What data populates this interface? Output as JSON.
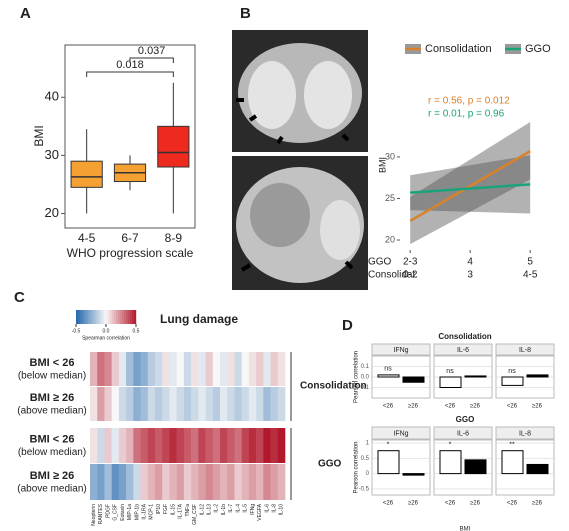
{
  "chart_data": [
    {
      "type": "box",
      "panel_label": "A",
      "ylabel": "BMI",
      "xlabel": "WHO progression scale",
      "categories": [
        "4-5",
        "6-7",
        "8-9"
      ],
      "boxes": [
        {
          "low": 20,
          "q1": 24.5,
          "median": 26.3,
          "q3": 29,
          "high": 34.5
        },
        {
          "low": 24,
          "q1": 25.5,
          "median": 27,
          "q3": 28.5,
          "high": 30
        },
        {
          "low": 20,
          "q1": 28,
          "median": 30.5,
          "q3": 35,
          "high": 42.5
        }
      ],
      "colors": [
        "#f5a033",
        "#f5a033",
        "#ee2a1e"
      ],
      "ylim": [
        17.5,
        49
      ],
      "yticks": [
        20,
        30,
        40
      ],
      "annotations": [
        "0.018",
        "0.037"
      ]
    },
    {
      "type": "line",
      "panel_label": "B",
      "ylabel": "BMI",
      "x": [
        3,
        5
      ],
      "series": [
        {
          "name": "Consolidation",
          "color": "#d9822b",
          "values": [
            22.3,
            30.7
          ],
          "lower": [
            19.5,
            27.3
          ],
          "upper": [
            25.2,
            34.2
          ]
        },
        {
          "name": "GGO",
          "color": "#1aa37a",
          "values": [
            25.7,
            26.7
          ],
          "lower": [
            23.6,
            23.2
          ],
          "upper": [
            27.8,
            30.2
          ]
        }
      ],
      "annotations": [
        "r = 0.56, p = 0.012",
        "r = 0.01, p = 0.96"
      ],
      "xlim": [
        2.83,
        5.08
      ],
      "xticks": [
        {
          "value": 3,
          "label": "2-3"
        },
        4,
        5
      ],
      "x2_labels": [
        "0-2",
        "3",
        "4-5"
      ],
      "x_row_labels": [
        "GGO",
        "Consolidat."
      ],
      "ylim": [
        18.8,
        39.5
      ],
      "yticks": [
        20,
        25,
        30
      ]
    },
    {
      "type": "heatmap",
      "panel_label": "C",
      "title": "Lung damage",
      "colorbar_label": "Spearman correlation",
      "clim": [
        -0.5,
        0.5
      ],
      "colorbar_ticks": [
        -0.5,
        {
          "value": 0,
          "label": "0.0"
        },
        0.5
      ],
      "row_labels": [
        [
          "BMI < 26",
          "(below median)"
        ],
        [
          "BMI ≥ 26",
          "(above median)"
        ],
        [
          "BMI < 26",
          "(below median)"
        ],
        [
          "BMI ≥ 26",
          "(above median)"
        ]
      ],
      "groups": [
        "Consolidation",
        "GGO"
      ],
      "columns": [
        "Neopterin",
        "RANTES",
        "PDGF",
        "G_CSF",
        "Eotaxin",
        "MIP-1a",
        "MIP-1b",
        "IL-1RA",
        "MCP-1",
        "IP10",
        "FGF",
        "IL-15",
        "IL-17A",
        "TNFa",
        "GM_CSF",
        "IL-12",
        "IL-13",
        "IL-2",
        "IL-1b",
        "IL-7",
        "IL-4",
        "IL-5",
        "IFNg",
        "VEGFA",
        "IL-6",
        "IL-8",
        "IL-10"
      ],
      "values": [
        [
          0.15,
          0.3,
          0.25,
          0.1,
          -0.05,
          -0.2,
          -0.3,
          -0.25,
          -0.15,
          -0.1,
          0.05,
          -0.05,
          0,
          -0.1,
          0.05,
          -0.05,
          0.1,
          0,
          -0.05,
          0.05,
          -0.1,
          0,
          0.05,
          0.1,
          -0.05,
          0.1,
          0.05
        ],
        [
          0.05,
          0.2,
          0.1,
          0,
          -0.1,
          -0.15,
          -0.25,
          -0.2,
          -0.1,
          -0.15,
          -0.1,
          -0.05,
          -0.1,
          -0.15,
          -0.1,
          -0.05,
          -0.1,
          -0.15,
          -0.05,
          -0.1,
          -0.15,
          -0.1,
          -0.05,
          -0.1,
          -0.2,
          -0.15,
          -0.1
        ],
        [
          0.05,
          -0.1,
          0.1,
          -0.05,
          0.1,
          0.15,
          0.3,
          0.35,
          0.4,
          0.35,
          0.4,
          0.45,
          0.4,
          0.35,
          0.3,
          0.4,
          0.35,
          0.3,
          0.4,
          0.35,
          0.3,
          0.4,
          0.45,
          0.4,
          0.5,
          0.45,
          0.5
        ],
        [
          -0.25,
          -0.3,
          -0.2,
          -0.35,
          -0.3,
          -0.2,
          -0.1,
          0.1,
          0.15,
          0.2,
          0.1,
          0.15,
          0.2,
          0.1,
          0.15,
          0.2,
          0.25,
          0.2,
          0.15,
          0.2,
          0.1,
          0.15,
          0.2,
          0.15,
          0.25,
          0.2,
          0.15
        ]
      ]
    },
    {
      "type": "facet_bar",
      "panel_label": "D",
      "ylabel": "Pearson correlation",
      "xlabel": "BMI",
      "categories": [
        "<26",
        "≥26"
      ],
      "colors": [
        "#ffffff",
        "#000000"
      ],
      "groups": [
        {
          "title": "Consolidation",
          "ylim": [
            -0.2,
            0.2
          ],
          "yticks": [
            -0.1,
            {
              "value": 0,
              "label": "0.0"
            },
            0.1
          ],
          "facets": [
            {
              "title": "IFNg",
              "values": [
                0.02,
                -0.05
              ],
              "annotation": "ns"
            },
            {
              "title": "IL-6",
              "values": [
                -0.1,
                0.01
              ],
              "annotation": "ns"
            },
            {
              "title": "IL-8",
              "values": [
                -0.08,
                0.02
              ],
              "annotation": "ns"
            }
          ]
        },
        {
          "title": "GGO",
          "ylim": [
            -0.7,
            1.1
          ],
          "yticks": [
            -0.5,
            0,
            0.5,
            1
          ],
          "facets": [
            {
              "title": "IFNg",
              "values": [
                0.75,
                -0.05
              ],
              "annotation": "*"
            },
            {
              "title": "IL-6",
              "values": [
                0.75,
                0.45
              ],
              "annotation": "*"
            },
            {
              "title": "IL-8",
              "values": [
                0.75,
                0.3
              ],
              "annotation": "**"
            }
          ]
        }
      ]
    }
  ]
}
